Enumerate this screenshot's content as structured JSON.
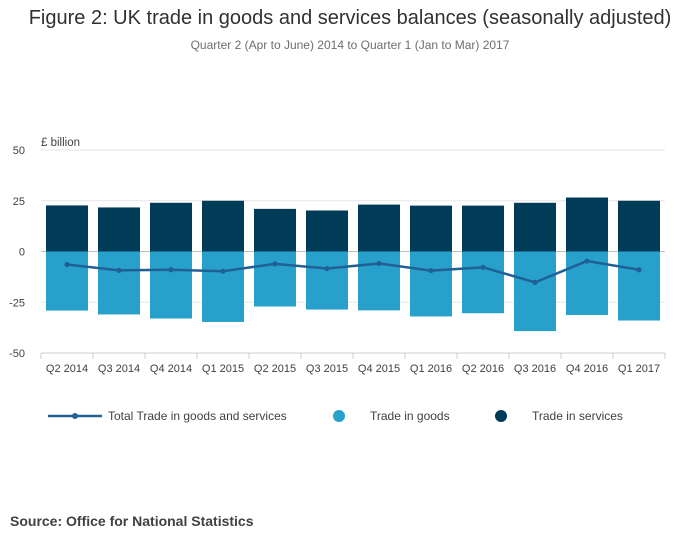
{
  "title": "Figure 2: UK trade in goods and services balances (seasonally adjusted)",
  "subtitle": "Quarter 2 (Apr to June) 2014 to Quarter 1 (Jan to Mar) 2017",
  "source": "Source: Office for National Statistics",
  "colors": {
    "services": "#003c57",
    "goods": "#27a0cc",
    "total": "#206095",
    "grid": "#e6e6e6",
    "zero_line": "#bebebe"
  },
  "chart_data": {
    "type": "bar",
    "stacked": true,
    "ylabel": "£ billion",
    "ylim": [
      -50,
      50
    ],
    "yticks": [
      50,
      25,
      0,
      -25,
      -50
    ],
    "categories": [
      "Q2 2014",
      "Q3 2014",
      "Q4 2014",
      "Q1 2015",
      "Q2 2015",
      "Q3 2015",
      "Q4 2015",
      "Q1 2016",
      "Q2 2016",
      "Q3 2016",
      "Q4 2016",
      "Q1 2017"
    ],
    "series": [
      {
        "name": "Trade in services",
        "type": "bar",
        "values": [
          22.7,
          21.7,
          24.0,
          25.0,
          21.0,
          20.2,
          23.1,
          22.6,
          22.6,
          24.0,
          26.6,
          25.0
        ]
      },
      {
        "name": "Trade in goods",
        "type": "bar",
        "values": [
          -29.1,
          -31.0,
          -33.0,
          -34.7,
          -27.1,
          -28.6,
          -29.0,
          -32.0,
          -30.4,
          -39.2,
          -31.3,
          -34.0
        ]
      },
      {
        "name": "Total Trade in goods and services",
        "type": "line",
        "values": [
          -6.4,
          -9.3,
          -9.0,
          -9.7,
          -6.1,
          -8.4,
          -5.9,
          -9.4,
          -7.8,
          -15.2,
          -4.7,
          -9.0
        ]
      }
    ],
    "legend": [
      {
        "label": "Total Trade in goods and services",
        "kind": "line"
      },
      {
        "label": "Trade in goods",
        "kind": "dot-goods"
      },
      {
        "label": "Trade in services",
        "kind": "dot-services"
      }
    ]
  }
}
